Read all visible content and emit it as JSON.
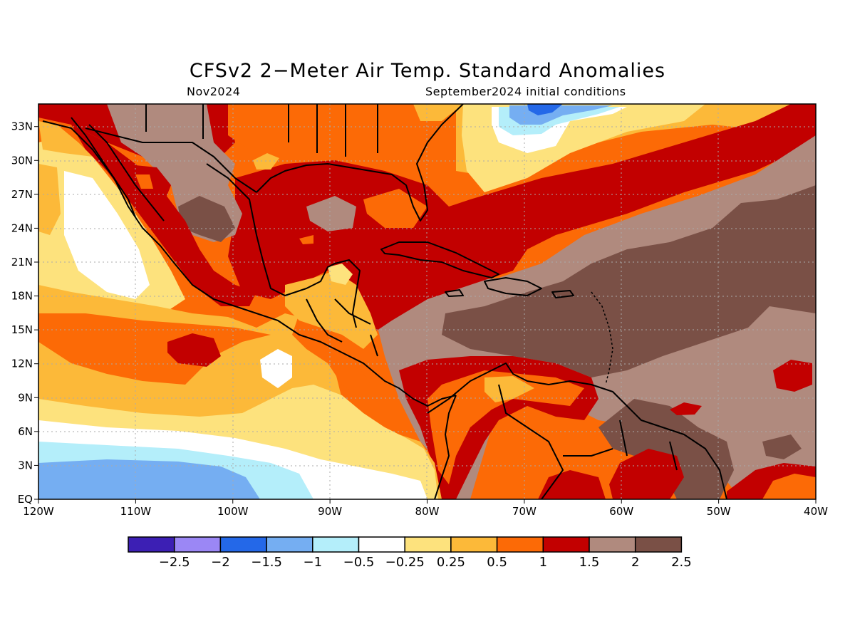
{
  "title": "CFSv2 2−Meter Air Temp. Standard Anomalies",
  "subtitle_left": "Nov2024",
  "subtitle_right": "September2024 initial conditions",
  "map": {
    "lon_range": [
      -120,
      -40
    ],
    "lat_range": [
      0,
      35
    ],
    "lat_ticks": [
      {
        "value": 33,
        "label": "33N"
      },
      {
        "value": 30,
        "label": "30N"
      },
      {
        "value": 27,
        "label": "27N"
      },
      {
        "value": 24,
        "label": "24N"
      },
      {
        "value": 21,
        "label": "21N"
      },
      {
        "value": 18,
        "label": "18N"
      },
      {
        "value": 15,
        "label": "15N"
      },
      {
        "value": 12,
        "label": "12N"
      },
      {
        "value": 9,
        "label": "9N"
      },
      {
        "value": 6,
        "label": "6N"
      },
      {
        "value": 3,
        "label": "3N"
      },
      {
        "value": 0,
        "label": "EQ"
      }
    ],
    "lon_ticks": [
      {
        "value": -120,
        "label": "120W"
      },
      {
        "value": -110,
        "label": "110W"
      },
      {
        "value": -100,
        "label": "100W"
      },
      {
        "value": -90,
        "label": "90W"
      },
      {
        "value": -80,
        "label": "80W"
      },
      {
        "value": -70,
        "label": "70W"
      },
      {
        "value": -60,
        "label": "60W"
      },
      {
        "value": -50,
        "label": "50W"
      },
      {
        "value": -40,
        "label": "40W"
      }
    ],
    "grid": "dotted"
  },
  "colorbar": {
    "colors": [
      "#3c1fb4",
      "#9b87f5",
      "#2468e8",
      "#75aef2",
      "#b4eefa",
      "#ffffff",
      "#fde27d",
      "#fcb939",
      "#fc6a06",
      "#c20000",
      "#b08a7e",
      "#7a5046"
    ],
    "labels": [
      "−2.5",
      "−2",
      "−1.5",
      "−1",
      "−0.5",
      "−0.25",
      "0.25",
      "0.5",
      "1",
      "1.5",
      "2",
      "2.5"
    ]
  },
  "palette": {
    "white": "#ffffff",
    "light_yellow": "#fde27d",
    "yellow_orange": "#fcb939",
    "orange": "#fc6a06",
    "red": "#c20000",
    "light_brown": "#b08a7e",
    "dark_brown": "#7a5046",
    "pale_blue": "#b4eefa",
    "light_blue": "#75aef2",
    "blue": "#2468e8"
  }
}
